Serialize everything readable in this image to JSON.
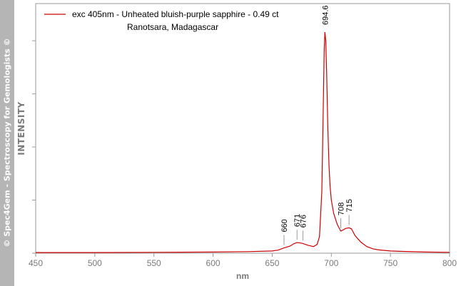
{
  "sidebar_text": "© Spec4Gem - Spectroscopy for Gemologists ©",
  "colors": {
    "series": "#cc0000",
    "axis": "#7a7a7a",
    "sidebar": "#b5b5b5"
  },
  "chart_data": {
    "type": "line",
    "xlabel": "nm",
    "ylabel": "INTENSITY",
    "xlim": [
      450,
      800
    ],
    "ylim": [
      0,
      100
    ],
    "x_ticks": [
      450,
      500,
      550,
      600,
      650,
      700,
      750,
      800
    ],
    "y_ticks_labeled": false,
    "grid": false,
    "legend": {
      "position": "top-left",
      "entries": [
        "exc 405nm - Unheated bluish-purple sapphire - 0.49 ct",
        "Ranotsara, Madagascar"
      ]
    },
    "series": [
      {
        "name": "exc 405nm - Unheated bluish-purple sapphire - 0.49 ct Ranotsara, Madagascar",
        "x": [
          450,
          500,
          550,
          600,
          630,
          650,
          655,
          660,
          665,
          668,
          671,
          674,
          676,
          680,
          685,
          688,
          690,
          692,
          693,
          694,
          694.6,
          695.3,
          696,
          697,
          698,
          699,
          700,
          702,
          705,
          708,
          710,
          712,
          715,
          717,
          720,
          725,
          730,
          735,
          740,
          750,
          760,
          780,
          800
        ],
        "y": [
          0.3,
          0.3,
          0.4,
          0.5,
          0.7,
          1.0,
          1.4,
          2.4,
          3.2,
          4.2,
          4.8,
          4.6,
          4.4,
          3.6,
          3.0,
          4.0,
          7.5,
          28,
          60,
          92,
          100,
          96,
          82,
          58,
          40,
          30,
          24,
          18,
          13,
          10,
          10.5,
          11.2,
          11.5,
          11.0,
          8.0,
          5.0,
          3.0,
          2.0,
          1.5,
          1.0,
          0.8,
          0.5,
          0.4
        ]
      }
    ],
    "annotations": [
      {
        "label": "660",
        "x": 660
      },
      {
        "label": "671",
        "x": 671
      },
      {
        "label": "676",
        "x": 676
      },
      {
        "label": "694.6",
        "x": 694.6
      },
      {
        "label": "708",
        "x": 708
      },
      {
        "label": "715",
        "x": 715
      }
    ]
  }
}
